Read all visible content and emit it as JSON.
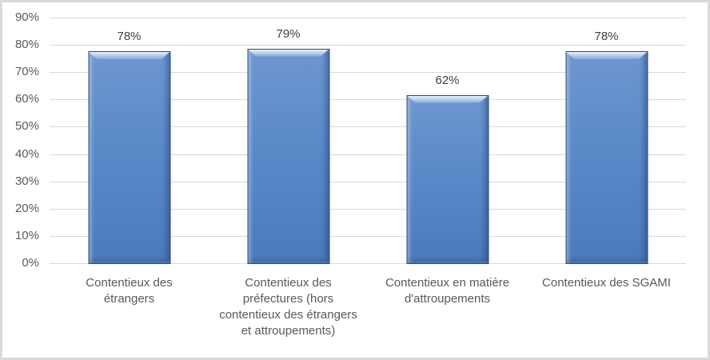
{
  "chart_data": {
    "type": "bar",
    "title": "",
    "xlabel": "",
    "ylabel": "",
    "categories": [
      "Contentieux des étrangers",
      "Contentieux des préfectures (hors contentieux des étrangers et attroupements)",
      "Contentieux en matière d'attroupements",
      "Contentieux des SGAMI"
    ],
    "categories_lines": [
      [
        "Contentieux des",
        "étrangers"
      ],
      [
        "Contentieux des",
        "préfectures (hors",
        "contentieux des étrangers",
        "et attroupements)"
      ],
      [
        "Contentieux en matière",
        "d'attroupements"
      ],
      [
        "Contentieux des SGAMI"
      ]
    ],
    "values": [
      78,
      79,
      62,
      78
    ],
    "value_labels": [
      "78%",
      "79%",
      "62%",
      "78%"
    ],
    "ylim": [
      0,
      90
    ],
    "yticks": [
      0,
      10,
      20,
      30,
      40,
      50,
      60,
      70,
      80,
      90
    ],
    "ytick_labels": [
      "0%",
      "10%",
      "20%",
      "30%",
      "40%",
      "50%",
      "60%",
      "70%",
      "80%",
      "90%"
    ],
    "grid": true,
    "legend": false,
    "colors": {
      "bar_fill": "#5B8AC9",
      "bar_fill_top": "#6E96D0",
      "bar_fill_bottom": "#4A7ABA",
      "bar_bevel_highlight": "#AFCAEE",
      "bar_border": "#2C4A76",
      "gridline": "#D9D9D9",
      "axis_text": "#595959",
      "value_text": "#3F3F3F",
      "frame_border": "#D9D9D9",
      "background": "#FFFFFF"
    }
  }
}
